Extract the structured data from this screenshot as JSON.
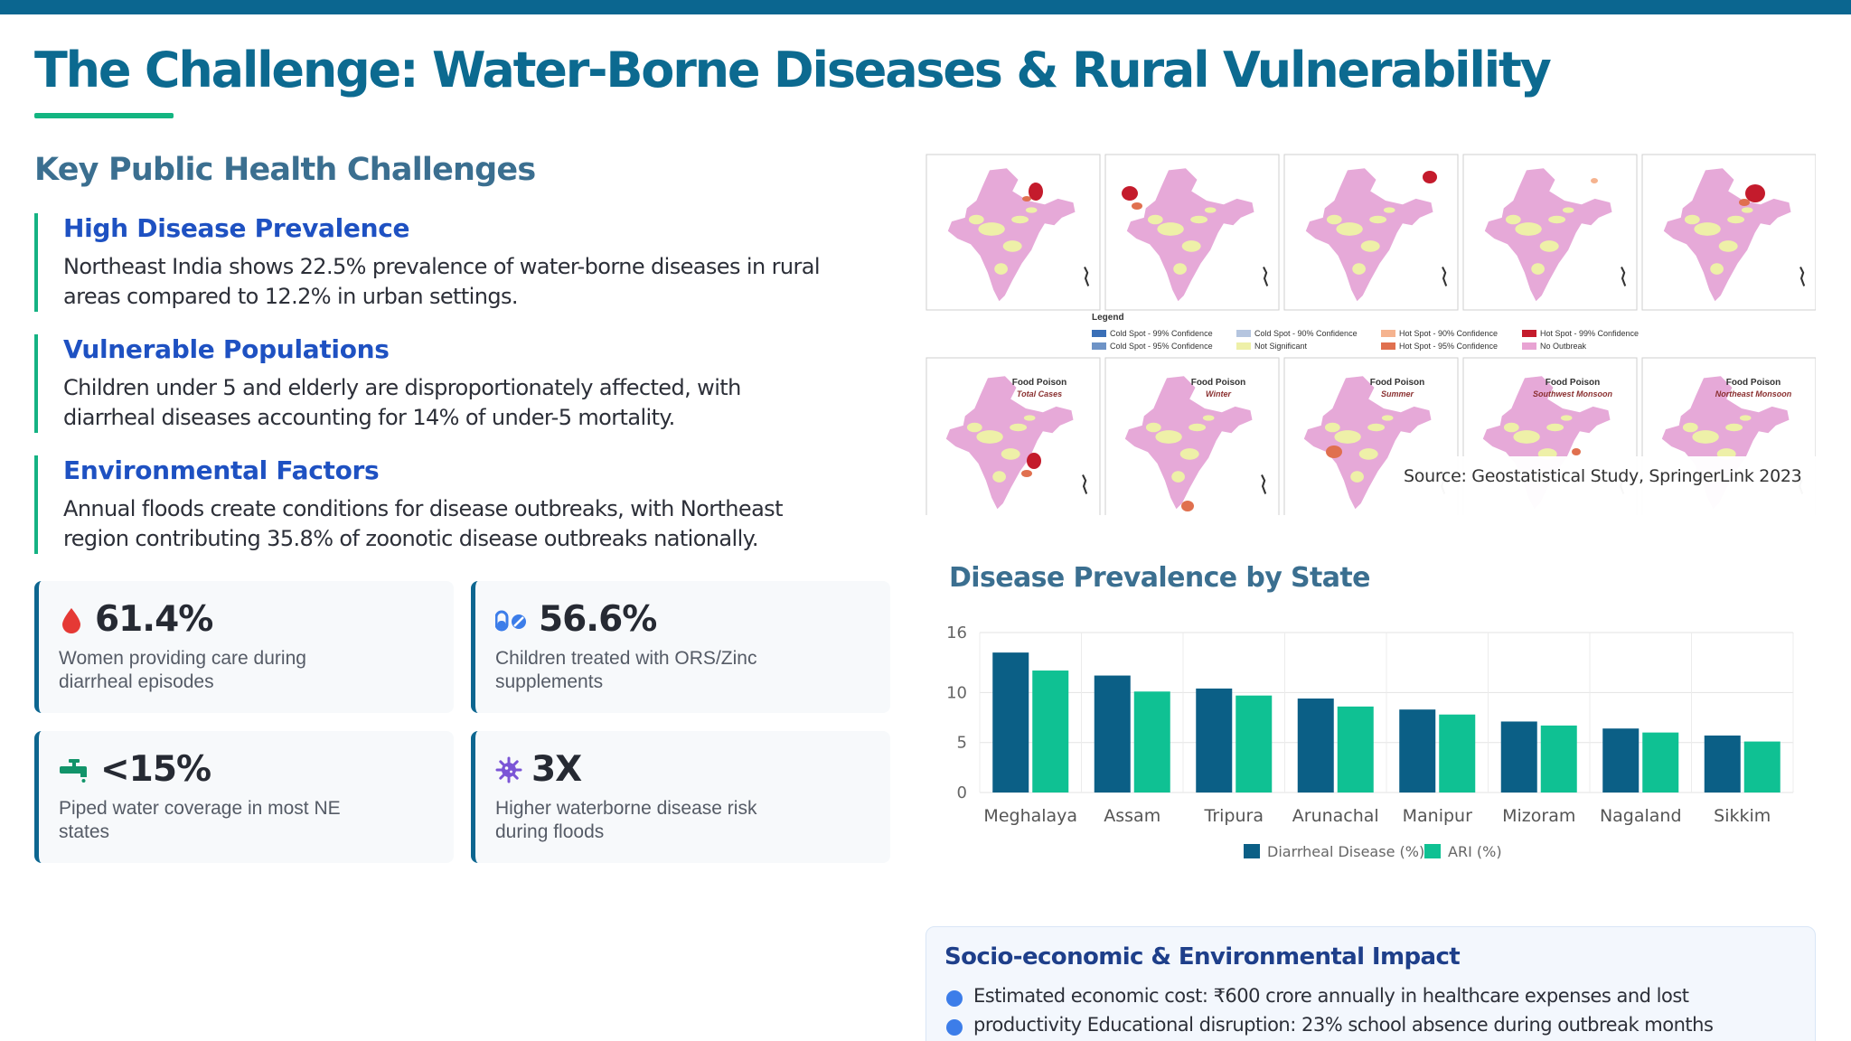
{
  "page": {
    "title": "The Challenge: Water-Borne Diseases & Rural Vulnerability"
  },
  "challenges": {
    "heading": "Key Public Health Challenges",
    "items": [
      {
        "title": "High Disease Prevalence",
        "text": "Northeast India shows 22.5% prevalence of water-borne diseases in rural areas compared to 12.2% in urban settings."
      },
      {
        "title": "Vulnerable Populations",
        "text": "Children under 5 and elderly are disproportionately affected, with diarrheal diseases accounting for 14% of under-5 mortality."
      },
      {
        "title": "Environmental Factors",
        "text": "Annual floods create conditions for disease outbreaks, with Northeast region contributing 35.8% of zoonotic disease outbreaks nationally."
      }
    ]
  },
  "stats": [
    {
      "value": "61.4%",
      "label": "Women providing care during diarrheal episodes",
      "icon": "droplet-icon",
      "color": "#e53935"
    },
    {
      "value": "56.6%",
      "label": "Children treated with ORS/Zinc supplements",
      "icon": "pills-icon",
      "color": "#3c7de9"
    },
    {
      "value": "<15%",
      "label": "Piped water coverage in most NE states",
      "icon": "faucet-icon",
      "color": "#12946a"
    },
    {
      "value": "3X",
      "label": "Higher waterborne disease risk during floods",
      "icon": "virus-icon",
      "color": "#7b55d6"
    }
  ],
  "maps": {
    "legend_title": "Legend",
    "legend_items": [
      {
        "label": "Cold Spot - 99% Confidence",
        "color": "#3a6fb7"
      },
      {
        "label": "Cold Spot - 95% Confidence",
        "color": "#6e93c6"
      },
      {
        "label": "Cold Spot - 90% Confidence",
        "color": "#b5c5df"
      },
      {
        "label": "Not Significant",
        "color": "#eef0a8"
      },
      {
        "label": "Hot Spot - 90% Confidence",
        "color": "#f5b38f"
      },
      {
        "label": "Hot Spot - 95% Confidence",
        "color": "#e0704f"
      },
      {
        "label": "Hot Spot - 99% Confidence",
        "color": "#c41b2c"
      },
      {
        "label": "No Outbreak",
        "color": "#e8a3d3"
      }
    ],
    "bottom_labels": [
      {
        "title": "Food Poison",
        "sub": "Total Cases"
      },
      {
        "title": "Food Poison",
        "sub": "Winter"
      },
      {
        "title": "Food Poison",
        "sub": "Summer"
      },
      {
        "title": "Food Poison",
        "sub": "Southwest Monsoon"
      },
      {
        "title": "Food Poison",
        "sub": "Northeast Monsoon"
      }
    ],
    "source": "Source: Geostatistical Study, SpringerLink 2023"
  },
  "chart_data": {
    "type": "bar",
    "title": "Disease Prevalence by State",
    "categories": [
      "Meghalaya",
      "Assam",
      "Tripura",
      "Arunachal",
      "Manipur",
      "Mizoram",
      "Nagaland",
      "Sikkim"
    ],
    "series": [
      {
        "name": "Diarrheal Disease (%)",
        "values": [
          14.0,
          11.7,
          10.4,
          9.4,
          8.3,
          7.1,
          6.4,
          5.7
        ],
        "color": "#0b5f86"
      },
      {
        "name": "ARI (%)",
        "values": [
          12.2,
          10.1,
          9.7,
          8.6,
          7.8,
          6.7,
          6.0,
          5.1
        ],
        "color": "#0fc193"
      }
    ],
    "y_ticks": [
      0,
      5,
      10,
      16
    ],
    "ylim": [
      0,
      16
    ],
    "grid": true,
    "legend": "bottom"
  },
  "impact": {
    "title": "Socio-economic & Environmental Impact",
    "items": [
      "Estimated economic cost: ₹600 crore annually in healthcare expenses and lost",
      "productivity Educational disruption: 23% school absence during outbreak months"
    ]
  }
}
